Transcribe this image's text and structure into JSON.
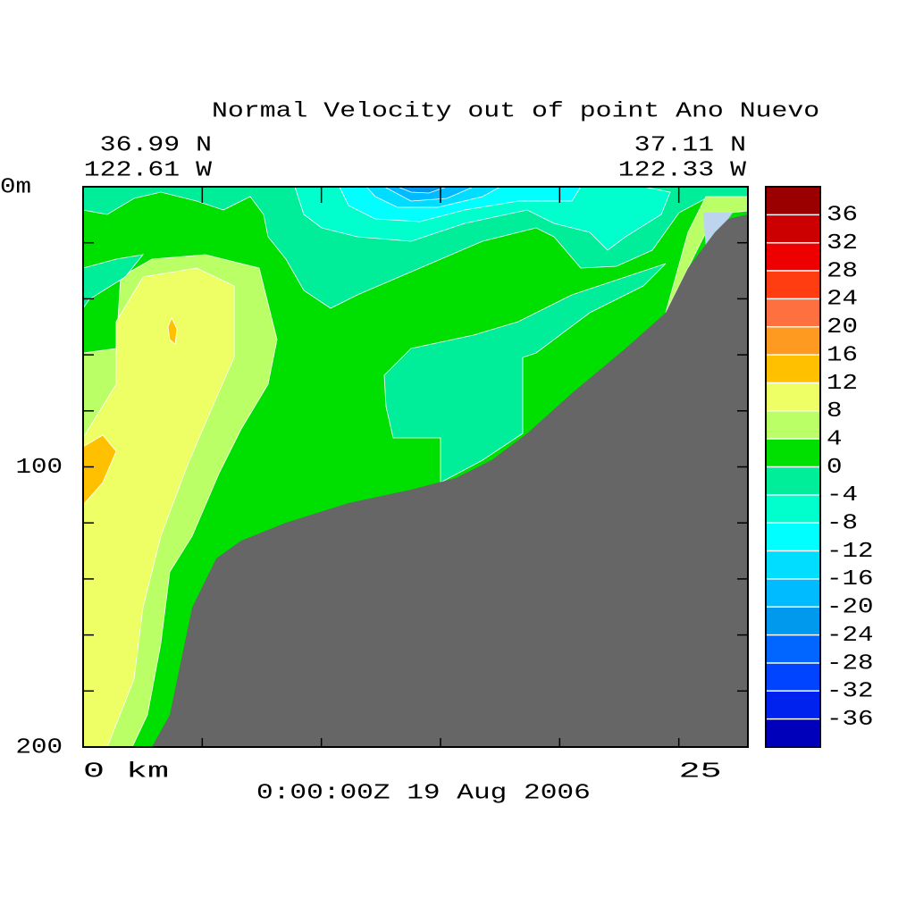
{
  "chart_data": {
    "type": "contour",
    "title": "Normal Velocity out of point Ano Nuevo",
    "start_lat": "36.99 N",
    "start_lon": "122.61 W",
    "end_lat": "37.11 N",
    "end_lon": "122.33 W",
    "footer": "0:00:00Z  19 Aug 2006",
    "xlim": [
      0,
      27.9
    ],
    "xticks": [
      0,
      5,
      10,
      15,
      20,
      25
    ],
    "xtick_labels": [
      "0 km",
      null,
      null,
      null,
      null,
      "25"
    ],
    "ylim": [
      0,
      200
    ],
    "yticks": [
      0,
      20,
      40,
      60,
      80,
      100,
      120,
      140,
      160,
      180,
      200
    ],
    "ytick_labels": [
      "0m",
      null,
      null,
      null,
      null,
      "100",
      null,
      null,
      null,
      null,
      "200"
    ],
    "y_inverted": true,
    "levels": [
      -40,
      -36,
      -32,
      -28,
      -24,
      -20,
      -16,
      -12,
      -8,
      -4,
      0,
      4,
      8,
      12,
      16,
      20,
      24,
      28,
      32,
      36,
      40
    ],
    "colors": [
      "#0000bb",
      "#0022ee",
      "#0044ff",
      "#0066ff",
      "#0099ee",
      "#00bbff",
      "#00ddff",
      "#00ffff",
      "#00ffcc",
      "#00ee99",
      "#00e000",
      "#bbff66",
      "#eeff66",
      "#ffc000",
      "#ff9a20",
      "#ff7040",
      "#ff3d10",
      "#ee0000",
      "#cc0000",
      "#9b0000"
    ]
  }
}
